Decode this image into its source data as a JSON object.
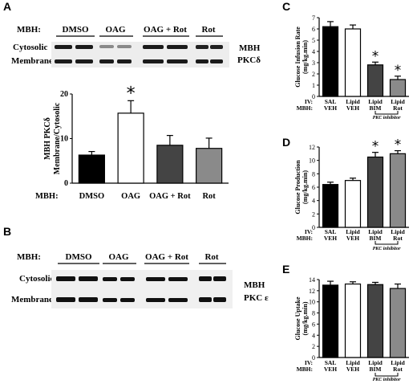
{
  "panels": {
    "A": {
      "label": "A",
      "blot": {
        "header_label": "MBH:",
        "groups": [
          "DMSO",
          "OAG",
          "OAG + Rot",
          "Rot"
        ],
        "rows": [
          "Cytosolic",
          "Membrane"
        ],
        "side_label": [
          "MBH",
          "PKCδ"
        ]
      }
    },
    "B": {
      "label": "B",
      "blot": {
        "header_label": "MBH:",
        "groups": [
          "DMSO",
          "OAG",
          "OAG + Rot",
          "Rot"
        ],
        "rows": [
          "Cytosolic",
          "Membrane"
        ],
        "side_label": [
          "MBH",
          "PKC ε"
        ]
      }
    },
    "C": {
      "label": "C"
    },
    "D": {
      "label": "D"
    },
    "E": {
      "label": "E"
    }
  },
  "chart_data": [
    {
      "id": "A",
      "type": "bar",
      "ylabel": [
        "MBH PKCδ",
        "Membrane/Cytosolic"
      ],
      "ylim": [
        0,
        20
      ],
      "yticks": [
        0,
        10,
        20
      ],
      "xaxis_prefix": "MBH:",
      "categories": [
        "DMSO",
        "OAG",
        "OAG + Rot",
        "Rot"
      ],
      "values": [
        6.3,
        15.7,
        8.5,
        7.8
      ],
      "errors": [
        0.8,
        2.8,
        2.2,
        2.3
      ],
      "colors": [
        "#000000",
        "#ffffff",
        "#444444",
        "#8a8a8a"
      ],
      "significant": [
        false,
        true,
        false,
        false
      ],
      "annotation_mark": "*"
    },
    {
      "id": "C",
      "type": "bar",
      "ylabel": [
        "Glucose Infusion Rate",
        "(mg/kg.min)"
      ],
      "ylim": [
        0,
        7
      ],
      "yticks": [
        0,
        1,
        2,
        3,
        4,
        5,
        6,
        7
      ],
      "row_prefixes": [
        "IV:",
        "MBH:"
      ],
      "iv": [
        "SAL",
        "Lipid",
        "Lipid",
        "Lipid"
      ],
      "mbh": [
        "VEH",
        "VEH",
        "BIM",
        "Rot"
      ],
      "values": [
        6.2,
        6.0,
        2.8,
        1.5
      ],
      "errors": [
        0.45,
        0.35,
        0.25,
        0.3
      ],
      "colors": [
        "#000000",
        "#ffffff",
        "#444444",
        "#8a8a8a"
      ],
      "significant": [
        false,
        false,
        true,
        true
      ],
      "bracket_label": "PKC inhibitor",
      "annotation_mark": "*"
    },
    {
      "id": "D",
      "type": "bar",
      "ylabel": [
        "Glucose Production",
        "(mg/kg.min)"
      ],
      "ylim": [
        0,
        12
      ],
      "yticks": [
        0,
        2,
        4,
        6,
        8,
        10,
        12
      ],
      "row_prefixes": [
        "IV:",
        "MBH:"
      ],
      "iv": [
        "SAL",
        "Lipid",
        "Lipid",
        "Lipid"
      ],
      "mbh": [
        "VEH",
        "VEH",
        "BIM",
        "Rot"
      ],
      "values": [
        6.4,
        7.0,
        10.5,
        11.0
      ],
      "errors": [
        0.35,
        0.35,
        0.7,
        0.45
      ],
      "colors": [
        "#000000",
        "#ffffff",
        "#444444",
        "#8a8a8a"
      ],
      "significant": [
        false,
        false,
        true,
        true
      ],
      "bracket_label": "PKC inhibitor",
      "annotation_mark": "*"
    },
    {
      "id": "E",
      "type": "bar",
      "ylabel": [
        "Glucose Uptake",
        "(mg/kg.min)"
      ],
      "ylim": [
        0,
        14
      ],
      "yticks": [
        0,
        2,
        4,
        6,
        8,
        10,
        12,
        14
      ],
      "row_prefixes": [
        "IV:",
        "MBH:"
      ],
      "iv": [
        "SAL",
        "Lipid",
        "Lipid",
        "Lipid"
      ],
      "mbh": [
        "VEH",
        "VEH",
        "BIM",
        "Rot"
      ],
      "values": [
        13.0,
        13.2,
        13.1,
        12.4
      ],
      "errors": [
        0.7,
        0.4,
        0.4,
        0.8
      ],
      "colors": [
        "#000000",
        "#ffffff",
        "#444444",
        "#8a8a8a"
      ],
      "significant": [
        false,
        false,
        false,
        false
      ],
      "bracket_label": "PKC inhibitor",
      "annotation_mark": "*"
    }
  ]
}
